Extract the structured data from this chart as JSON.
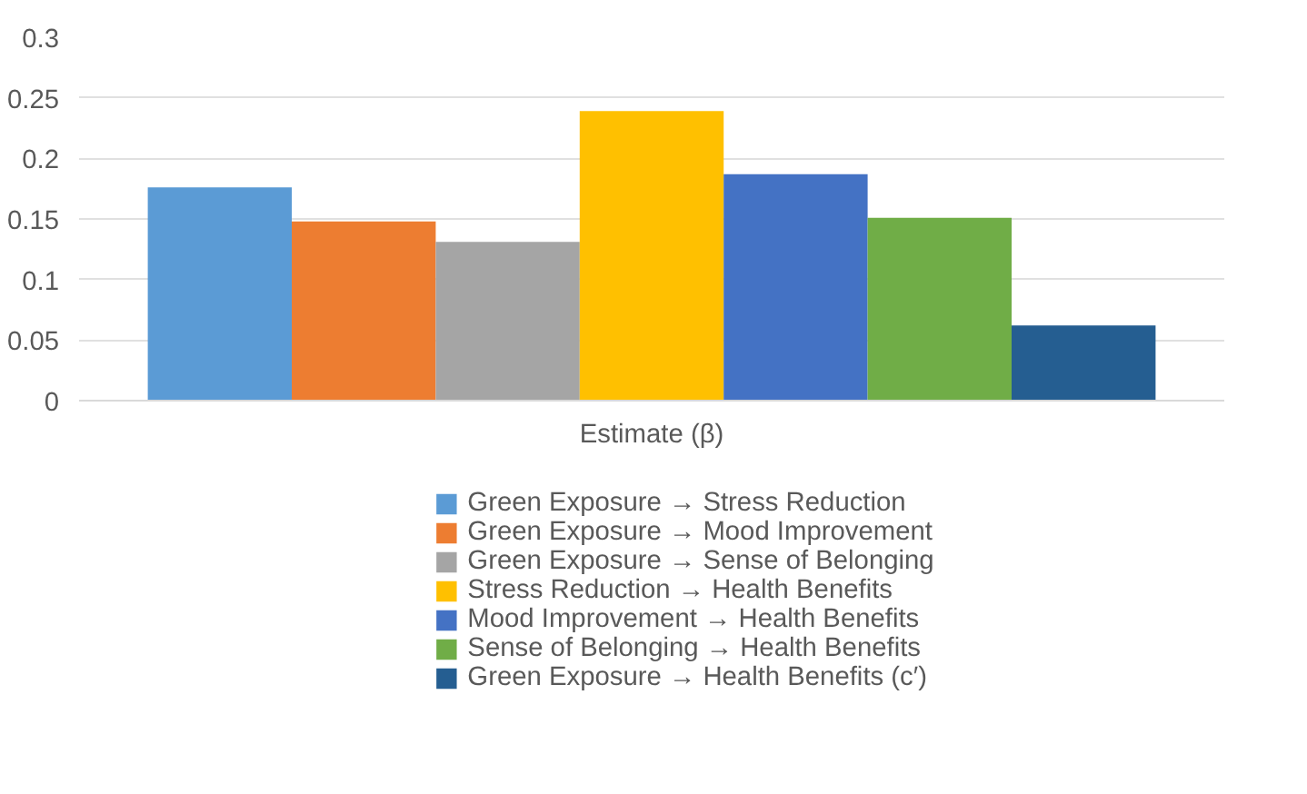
{
  "chart_data": {
    "type": "bar",
    "categories": [
      "Estimate (β)"
    ],
    "series": [
      {
        "name": "Green Exposure → Stress Reduction",
        "color": "#5b9bd5",
        "values": [
          0.176
        ]
      },
      {
        "name": "Green Exposure → Mood Improvement",
        "color": "#ed7d31",
        "values": [
          0.148
        ]
      },
      {
        "name": "Green Exposure → Sense of Belonging",
        "color": "#a5a5a5",
        "values": [
          0.131
        ]
      },
      {
        "name": "Stress Reduction → Health Benefits",
        "color": "#ffc000",
        "values": [
          0.239
        ]
      },
      {
        "name": "Mood Improvement → Health Benefits",
        "color": "#4472c4",
        "values": [
          0.187
        ]
      },
      {
        "name": "Sense of Belonging → Health Benefits",
        "color": "#70ad47",
        "values": [
          0.151
        ]
      },
      {
        "name": "Green Exposure → Health Benefits (c′)",
        "color": "#255e91",
        "values": [
          0.062
        ]
      }
    ],
    "ylim": [
      0,
      0.3
    ],
    "yticks": [
      0,
      0.05,
      0.1,
      0.15,
      0.2,
      0.25,
      0.3
    ],
    "grid": "y",
    "legend": "bottom"
  }
}
